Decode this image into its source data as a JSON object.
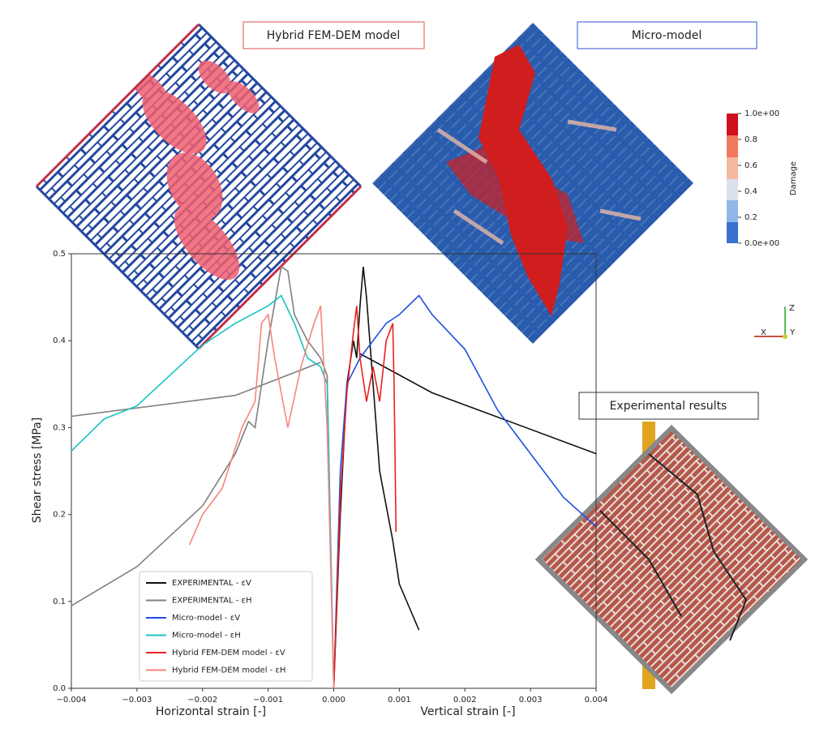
{
  "chart_data": {
    "type": "line",
    "xlabel_left": "Horizontal strain [-]",
    "xlabel_right": "Vertical strain [-]",
    "ylabel": "Shear stress [MPa]",
    "xlim": [
      -0.004,
      0.004
    ],
    "ylim": [
      0,
      0.5
    ],
    "xticks": [
      {
        "value": -0.004,
        "label": "−0.004"
      },
      {
        "value": -0.003,
        "label": "−0.003"
      },
      {
        "value": -0.002,
        "label": "−0.002"
      },
      {
        "value": -0.001,
        "label": "−0.001"
      },
      {
        "value": 0,
        "label": "0.000"
      },
      0.001,
      0.002,
      0.003,
      0.004
    ],
    "yticks": [
      {
        "value": 0,
        "label": "0.0"
      },
      0.1,
      0.2,
      0.3,
      0.4,
      0.5
    ],
    "legend": "lower left",
    "series": [
      {
        "name": "EXPERIMENTAL - εV",
        "color": "#111111",
        "x": [
          0,
          0.0001,
          0.0002,
          0.0003,
          0.00035,
          0.0004,
          0.00045,
          0.0005,
          0.0006,
          0.0007,
          0.0009,
          0.001,
          0.0013,
          null,
          0.0004,
          0.0015,
          0.004
        ],
        "values": [
          0,
          0.2,
          0.35,
          0.4,
          0.38,
          0.44,
          0.485,
          0.45,
          0.35,
          0.25,
          0.17,
          0.12,
          0.067,
          null,
          0.385,
          0.34,
          0.27
        ]
      },
      {
        "name": "EXPERIMENTAL - εH",
        "color": "#7f7f7f",
        "x": [
          -0.004,
          -0.003,
          -0.002,
          -0.0015,
          -0.0013,
          -0.0012,
          -0.001,
          -0.0008,
          -0.0007,
          -0.0006,
          -0.0004,
          -0.0002,
          -0.0001,
          0,
          null,
          -0.004,
          -0.0015,
          -0.0002
        ],
        "values": [
          0.095,
          0.14,
          0.21,
          0.27,
          0.307,
          0.3,
          0.4,
          0.485,
          0.48,
          0.43,
          0.4,
          0.38,
          0.36,
          0,
          null,
          0.313,
          0.337,
          0.375
        ]
      },
      {
        "name": "Micro-model - εV",
        "color": "#1f4fe0",
        "x": [
          0,
          0.0001,
          0.0002,
          0.0004,
          0.0008,
          0.001,
          0.0013,
          0.0015,
          0.002,
          0.0025,
          0.003,
          0.0035,
          0.004
        ],
        "values": [
          0,
          0.25,
          0.35,
          0.38,
          0.42,
          0.43,
          0.452,
          0.43,
          0.39,
          0.32,
          0.27,
          0.22,
          0.186
        ]
      },
      {
        "name": "Micro-model - εH",
        "color": "#17c3c3",
        "x": [
          -0.004,
          -0.0035,
          -0.003,
          -0.0025,
          -0.002,
          -0.0015,
          -0.001,
          -0.0008,
          -0.0006,
          -0.0004,
          -0.0002,
          -0.0001,
          0
        ],
        "values": [
          0.273,
          0.31,
          0.325,
          0.36,
          0.395,
          0.42,
          0.44,
          0.452,
          0.42,
          0.38,
          0.37,
          0.35,
          0
        ]
      },
      {
        "name": "Hybrid FEM-DEM model - εV",
        "color": "#e8211c",
        "x": [
          0,
          0.0001,
          0.0002,
          0.0003,
          0.00035,
          0.0004,
          0.0005,
          0.0006,
          0.0007,
          0.0008,
          0.0009,
          0.00092,
          0.00095
        ],
        "values": [
          0,
          0.22,
          0.34,
          0.41,
          0.44,
          0.38,
          0.33,
          0.37,
          0.33,
          0.4,
          0.42,
          0.35,
          0.18
        ]
      },
      {
        "name": "Hybrid FEM-DEM model - εH",
        "color": "#f7857a",
        "x": [
          -0.0022,
          -0.002,
          -0.0017,
          -0.0014,
          -0.0012,
          -0.0011,
          -0.001,
          -0.0009,
          -0.0007,
          -0.0005,
          -0.0003,
          -0.0002,
          -0.0001,
          0
        ],
        "values": [
          0.165,
          0.2,
          0.23,
          0.3,
          0.33,
          0.42,
          0.43,
          0.38,
          0.3,
          0.37,
          0.42,
          0.44,
          0.3,
          0
        ]
      }
    ],
    "panels": [
      "Hybrid FEM-DEM model",
      "Micro-model",
      "Experimental results"
    ],
    "colorbar": {
      "label": "Damage",
      "ticks": [
        {
          "value": 1,
          "label": "1.0e+00"
        },
        0.8,
        0.6,
        0.4,
        0.2,
        {
          "value": 0,
          "label": "0.0e+00"
        }
      ]
    },
    "triad": [
      "Z",
      "X",
      "Y"
    ]
  }
}
